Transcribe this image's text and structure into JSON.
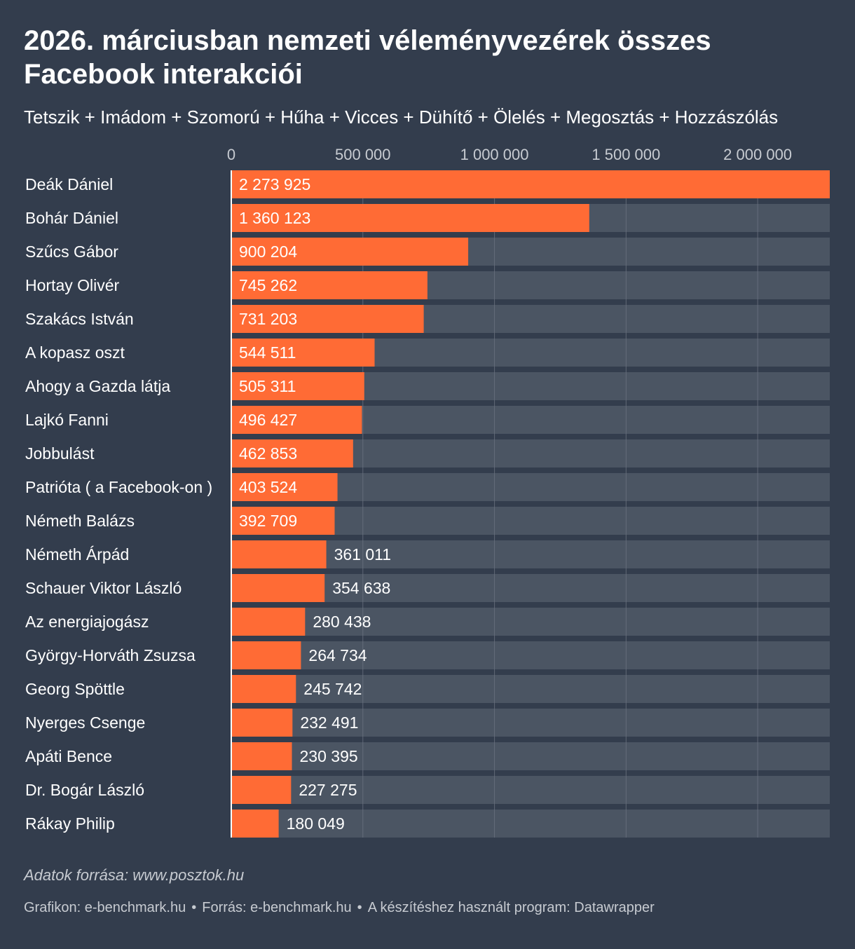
{
  "chart_data": {
    "type": "bar",
    "orientation": "horizontal",
    "title": "2026. márciusban nemzeti véleményvezérek összes Facebook interakciói",
    "subtitle": "Tetszik + Imádom + Szomorú + Hűha + Vicces + Dühítő + Ölelés + Megosztás + Hozzászólás",
    "xlim": [
      0,
      2273925
    ],
    "ticks": [
      0,
      500000,
      1000000,
      1500000,
      2000000
    ],
    "tick_labels": [
      "0",
      "500 000",
      "1 000 000",
      "1 500 000",
      "2 000 000"
    ],
    "categories": [
      "Deák Dániel",
      "Bohár Dániel",
      "Szűcs Gábor",
      "Hortay Olivér",
      "Szakács István",
      "A kopasz oszt",
      "Ahogy a Gazda látja",
      "Lajkó Fanni",
      "Jobbulást",
      "Patrióta ( a Facebook-on )",
      "Németh Balázs",
      "Németh Árpád",
      "Schauer Viktor László",
      "Az energiajogász",
      "György-Horváth Zsuzsa",
      "Georg Spöttle",
      "Nyerges Csenge",
      "Apáti Bence",
      "Dr. Bogár László",
      "Rákay Philip"
    ],
    "values": [
      2273925,
      1360123,
      900204,
      745262,
      731203,
      544511,
      505311,
      496427,
      462853,
      403524,
      392709,
      361011,
      354638,
      280438,
      264734,
      245742,
      232491,
      230395,
      227275,
      180049
    ],
    "value_labels": [
      "2 273 925",
      "1 360 123",
      "900 204",
      "745 262",
      "731 203",
      "544 511",
      "505 311",
      "496 427",
      "462 853",
      "403 524",
      "392 709",
      "361 011",
      "354 638",
      "280 438",
      "264 734",
      "245 742",
      "232 491",
      "230 395",
      "227 275",
      "180 049"
    ],
    "bar_color": "#ff6b35",
    "track_color": "#4b5563",
    "background_color": "#333d4d"
  },
  "note": "Adatok forrása: www.posztok.hu",
  "footer": {
    "credit": "Grafikon: e-benchmark.hu",
    "source": "Forrás: e-benchmark.hu",
    "tool": "A készítéshez használt program: Datawrapper"
  }
}
